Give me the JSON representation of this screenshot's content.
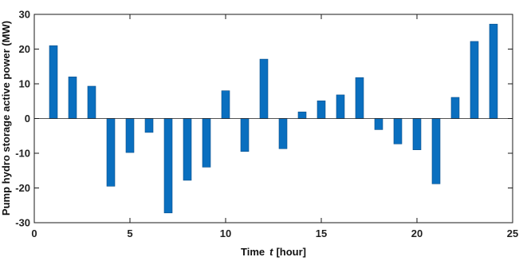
{
  "chart_data": {
    "type": "bar",
    "xlabel_main": "Time",
    "xlabel_var": "t",
    "xlabel_unit": "[hour]",
    "ylabel": "Pump hydro storage active power (MW)",
    "xlim": [
      0,
      25
    ],
    "ylim": [
      -30,
      30
    ],
    "x_ticks": [
      0,
      5,
      10,
      15,
      20,
      25
    ],
    "y_ticks": [
      -30,
      -20,
      -10,
      0,
      10,
      20,
      30
    ],
    "grid": false,
    "bar_color": "#0a6fbf",
    "x": [
      1,
      2,
      3,
      4,
      5,
      6,
      7,
      8,
      9,
      10,
      11,
      12,
      13,
      14,
      15,
      16,
      17,
      18,
      19,
      20,
      21,
      22,
      23,
      24
    ],
    "values": [
      21,
      12,
      9.3,
      -19.5,
      -9.8,
      -4,
      -27.2,
      -17.8,
      -14,
      8,
      -9.5,
      17.1,
      -8.7,
      1.9,
      5.1,
      6.8,
      11.8,
      -3.2,
      -7.3,
      -9,
      -18.8,
      6.1,
      22.2,
      27.2
    ]
  }
}
